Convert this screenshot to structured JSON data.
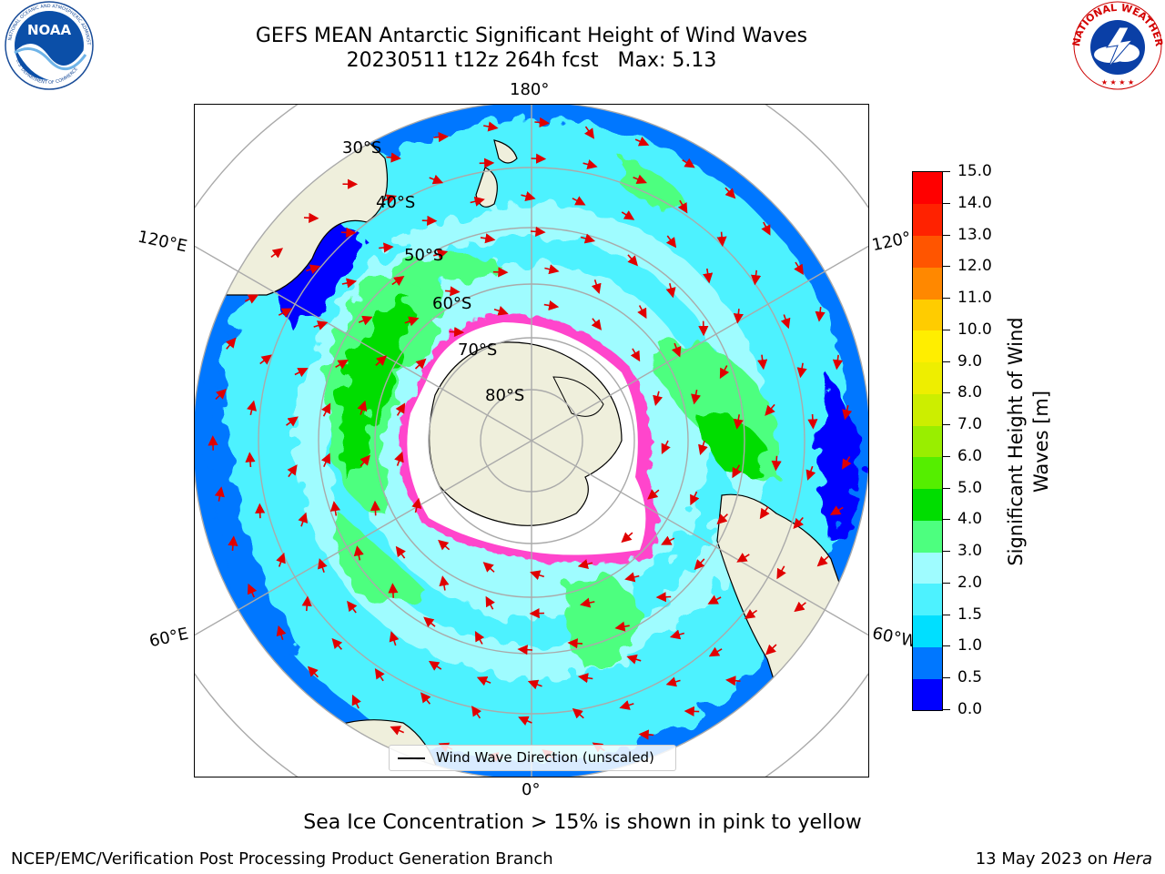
{
  "title": {
    "line1": "GEFS MEAN Antarctic Significant Height of Wind Waves",
    "line2": "20230511 t12z 264h fcst   Max: 5.13"
  },
  "map": {
    "projection": "south-polar-stereographic",
    "longitude_labels": [
      "180°",
      "120°E",
      "120°",
      "60°E",
      "60°W",
      "0°"
    ],
    "latitude_labels": [
      "30°S",
      "40°S",
      "50°S",
      "60°S",
      "70°S",
      "80°S"
    ],
    "legend_label": "Wind Wave Direction (unscaled)",
    "arrow_color": "#e00000",
    "land_color": "#efefdc",
    "ice_color": "#ff44cc"
  },
  "colorbar": {
    "label": "Significant Height of Wind Waves [m]",
    "ticks": [
      "0.0",
      "0.5",
      "1.0",
      "1.5",
      "2.0",
      "3.0",
      "4.0",
      "5.0",
      "6.0",
      "7.0",
      "8.0",
      "9.0",
      "10.0",
      "11.0",
      "12.0",
      "13.0",
      "14.0",
      "15.0"
    ],
    "colors": [
      "#0000ff",
      "#0077ff",
      "#00dfff",
      "#4df2ff",
      "#9ffcff",
      "#4dff7f",
      "#00dd00",
      "#55ee00",
      "#99ee00",
      "#ccee00",
      "#eeee00",
      "#ffee00",
      "#ffcc00",
      "#ff8800",
      "#ff5500",
      "#ff2200",
      "#ff0000"
    ]
  },
  "caption": "Sea Ice Concentration > 15% is shown in pink to yellow",
  "footer": {
    "left": "NCEP/EMC/Verification Post Processing Product Generation Branch",
    "date": "13 May 2023 on ",
    "machine": "Hera"
  },
  "logos": {
    "noaa_text": "NOAA",
    "nws_text": "NATIONAL WEATHER SERVICE"
  }
}
